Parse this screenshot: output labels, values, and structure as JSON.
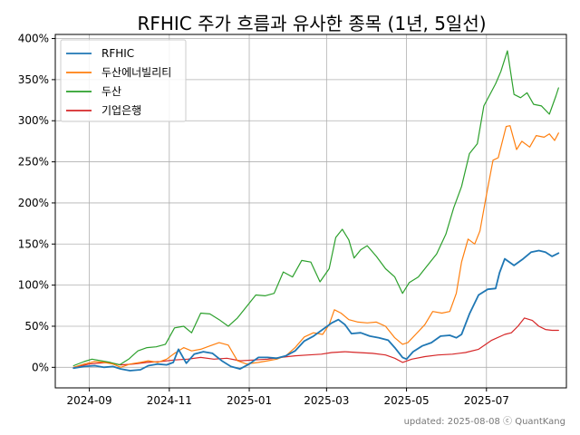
{
  "chart_data": {
    "type": "line",
    "title": "RFHIC 주가 흐름과 유사한 종목 (1년, 5일선)",
    "xlabel": "",
    "ylabel": "",
    "ylim": [
      -25,
      405
    ],
    "y_ticks": [
      "0%",
      "50%",
      "100%",
      "150%",
      "200%",
      "250%",
      "300%",
      "350%",
      "400%"
    ],
    "y_tick_values": [
      0,
      50,
      100,
      150,
      200,
      250,
      300,
      350,
      400
    ],
    "x_ticks": [
      "2024-09",
      "2024-11",
      "2025-01",
      "2025-03",
      "2025-05",
      "2025-07"
    ],
    "x_tick_values": [
      "2024-09-01",
      "2024-11-01",
      "2025-01-01",
      "2025-03-01",
      "2025-05-01",
      "2025-07-01"
    ],
    "xlim": [
      "2024-08-06",
      "2025-08-31"
    ],
    "grid": true,
    "legend_position": "top-left",
    "series": [
      {
        "name": "RFHIC",
        "color": "#1f77b4",
        "points": [
          [
            "2024-08-20",
            -1
          ],
          [
            "2024-08-28",
            1
          ],
          [
            "2024-09-05",
            2
          ],
          [
            "2024-09-12",
            0
          ],
          [
            "2024-09-19",
            1
          ],
          [
            "2024-09-25",
            -2
          ],
          [
            "2024-10-02",
            -4
          ],
          [
            "2024-10-10",
            -3
          ],
          [
            "2024-10-16",
            2
          ],
          [
            "2024-10-23",
            4
          ],
          [
            "2024-10-30",
            3
          ],
          [
            "2024-11-04",
            6
          ],
          [
            "2024-11-08",
            22
          ],
          [
            "2024-11-14",
            5
          ],
          [
            "2024-11-20",
            16
          ],
          [
            "2024-11-27",
            19
          ],
          [
            "2024-12-04",
            17
          ],
          [
            "2024-12-11",
            8
          ],
          [
            "2024-12-18",
            1
          ],
          [
            "2024-12-25",
            -2
          ],
          [
            "2025-01-01",
            4
          ],
          [
            "2025-01-08",
            12
          ],
          [
            "2025-01-15",
            12
          ],
          [
            "2025-01-22",
            11
          ],
          [
            "2025-01-29",
            14
          ],
          [
            "2025-02-05",
            20
          ],
          [
            "2025-02-12",
            32
          ],
          [
            "2025-02-19",
            38
          ],
          [
            "2025-02-26",
            46
          ],
          [
            "2025-03-05",
            54
          ],
          [
            "2025-03-10",
            58
          ],
          [
            "2025-03-15",
            52
          ],
          [
            "2025-03-20",
            41
          ],
          [
            "2025-03-27",
            42
          ],
          [
            "2025-04-03",
            38
          ],
          [
            "2025-04-10",
            36
          ],
          [
            "2025-04-17",
            33
          ],
          [
            "2025-04-22",
            24
          ],
          [
            "2025-04-28",
            12
          ],
          [
            "2025-05-01",
            10
          ],
          [
            "2025-05-06",
            19
          ],
          [
            "2025-05-13",
            26
          ],
          [
            "2025-05-20",
            30
          ],
          [
            "2025-05-27",
            38
          ],
          [
            "2025-06-03",
            39
          ],
          [
            "2025-06-08",
            36
          ],
          [
            "2025-06-12",
            40
          ],
          [
            "2025-06-18",
            65
          ],
          [
            "2025-06-25",
            88
          ],
          [
            "2025-07-02",
            95
          ],
          [
            "2025-07-08",
            96
          ],
          [
            "2025-07-11",
            115
          ],
          [
            "2025-07-15",
            132
          ],
          [
            "2025-07-22",
            124
          ],
          [
            "2025-07-29",
            132
          ],
          [
            "2025-08-04",
            140
          ],
          [
            "2025-08-10",
            142
          ],
          [
            "2025-08-15",
            140
          ],
          [
            "2025-08-20",
            135
          ],
          [
            "2025-08-25",
            139
          ]
        ]
      },
      {
        "name": "두산에너빌리티",
        "color": "#ff7f0e",
        "points": [
          [
            "2024-08-20",
            0
          ],
          [
            "2024-08-28",
            4
          ],
          [
            "2024-09-05",
            7
          ],
          [
            "2024-09-12",
            6
          ],
          [
            "2024-09-19",
            4
          ],
          [
            "2024-09-25",
            0
          ],
          [
            "2024-10-02",
            4
          ],
          [
            "2024-10-10",
            6
          ],
          [
            "2024-10-16",
            8
          ],
          [
            "2024-10-23",
            6
          ],
          [
            "2024-10-30",
            10
          ],
          [
            "2024-11-05",
            17
          ],
          [
            "2024-11-12",
            24
          ],
          [
            "2024-11-18",
            20
          ],
          [
            "2024-11-25",
            22
          ],
          [
            "2024-12-02",
            26
          ],
          [
            "2024-12-09",
            30
          ],
          [
            "2024-12-16",
            27
          ],
          [
            "2024-12-23",
            8
          ],
          [
            "2024-12-30",
            4
          ],
          [
            "2025-01-08",
            6
          ],
          [
            "2025-01-15",
            8
          ],
          [
            "2025-01-22",
            10
          ],
          [
            "2025-01-29",
            14
          ],
          [
            "2025-02-05",
            24
          ],
          [
            "2025-02-12",
            37
          ],
          [
            "2025-02-19",
            42
          ],
          [
            "2025-02-26",
            40
          ],
          [
            "2025-03-03",
            52
          ],
          [
            "2025-03-07",
            70
          ],
          [
            "2025-03-12",
            66
          ],
          [
            "2025-03-18",
            58
          ],
          [
            "2025-03-25",
            55
          ],
          [
            "2025-04-01",
            54
          ],
          [
            "2025-04-08",
            55
          ],
          [
            "2025-04-15",
            50
          ],
          [
            "2025-04-22",
            36
          ],
          [
            "2025-04-28",
            28
          ],
          [
            "2025-05-02",
            30
          ],
          [
            "2025-05-08",
            40
          ],
          [
            "2025-05-15",
            52
          ],
          [
            "2025-05-21",
            68
          ],
          [
            "2025-05-28",
            66
          ],
          [
            "2025-06-03",
            68
          ],
          [
            "2025-06-08",
            90
          ],
          [
            "2025-06-12",
            128
          ],
          [
            "2025-06-17",
            156
          ],
          [
            "2025-06-22",
            150
          ],
          [
            "2025-06-26",
            166
          ],
          [
            "2025-07-01",
            210
          ],
          [
            "2025-07-06",
            252
          ],
          [
            "2025-07-10",
            255
          ],
          [
            "2025-07-16",
            293
          ],
          [
            "2025-07-19",
            294
          ],
          [
            "2025-07-24",
            265
          ],
          [
            "2025-07-28",
            275
          ],
          [
            "2025-08-03",
            268
          ],
          [
            "2025-08-08",
            282
          ],
          [
            "2025-08-14",
            280
          ],
          [
            "2025-08-18",
            284
          ],
          [
            "2025-08-22",
            276
          ],
          [
            "2025-08-25",
            285
          ]
        ]
      },
      {
        "name": "두산",
        "color": "#2ca02c",
        "points": [
          [
            "2024-08-20",
            2
          ],
          [
            "2024-08-28",
            7
          ],
          [
            "2024-09-03",
            10
          ],
          [
            "2024-09-10",
            8
          ],
          [
            "2024-09-17",
            6
          ],
          [
            "2024-09-24",
            3
          ],
          [
            "2024-10-01",
            10
          ],
          [
            "2024-10-08",
            20
          ],
          [
            "2024-10-15",
            24
          ],
          [
            "2024-10-22",
            25
          ],
          [
            "2024-10-29",
            28
          ],
          [
            "2024-11-05",
            48
          ],
          [
            "2024-11-12",
            50
          ],
          [
            "2024-11-18",
            42
          ],
          [
            "2024-11-25",
            66
          ],
          [
            "2024-12-02",
            65
          ],
          [
            "2024-12-09",
            58
          ],
          [
            "2024-12-16",
            50
          ],
          [
            "2024-12-23",
            60
          ],
          [
            "2025-01-01",
            78
          ],
          [
            "2025-01-06",
            88
          ],
          [
            "2025-01-13",
            87
          ],
          [
            "2025-01-20",
            90
          ],
          [
            "2025-01-27",
            116
          ],
          [
            "2025-02-03",
            110
          ],
          [
            "2025-02-10",
            130
          ],
          [
            "2025-02-17",
            128
          ],
          [
            "2025-02-24",
            104
          ],
          [
            "2025-03-03",
            120
          ],
          [
            "2025-03-08",
            158
          ],
          [
            "2025-03-13",
            168
          ],
          [
            "2025-03-18",
            155
          ],
          [
            "2025-03-22",
            133
          ],
          [
            "2025-03-27",
            143
          ],
          [
            "2025-04-01",
            148
          ],
          [
            "2025-04-08",
            135
          ],
          [
            "2025-04-15",
            120
          ],
          [
            "2025-04-22",
            110
          ],
          [
            "2025-04-28",
            90
          ],
          [
            "2025-05-03",
            103
          ],
          [
            "2025-05-10",
            110
          ],
          [
            "2025-05-17",
            124
          ],
          [
            "2025-05-24",
            138
          ],
          [
            "2025-05-31",
            162
          ],
          [
            "2025-06-06",
            194
          ],
          [
            "2025-06-12",
            220
          ],
          [
            "2025-06-18",
            260
          ],
          [
            "2025-06-24",
            272
          ],
          [
            "2025-06-29",
            318
          ],
          [
            "2025-07-03",
            330
          ],
          [
            "2025-07-08",
            345
          ],
          [
            "2025-07-12",
            360
          ],
          [
            "2025-07-17",
            385
          ],
          [
            "2025-07-22",
            332
          ],
          [
            "2025-07-27",
            328
          ],
          [
            "2025-08-01",
            334
          ],
          [
            "2025-08-06",
            320
          ],
          [
            "2025-08-12",
            318
          ],
          [
            "2025-08-18",
            308
          ],
          [
            "2025-08-23",
            330
          ],
          [
            "2025-08-25",
            340
          ]
        ]
      },
      {
        "name": "기업은행",
        "color": "#d62728",
        "points": [
          [
            "2024-08-20",
            0
          ],
          [
            "2024-09-01",
            4
          ],
          [
            "2024-09-15",
            6
          ],
          [
            "2024-09-25",
            3
          ],
          [
            "2024-10-05",
            4
          ],
          [
            "2024-10-15",
            6
          ],
          [
            "2024-10-25",
            7
          ],
          [
            "2024-11-05",
            9
          ],
          [
            "2024-11-15",
            10
          ],
          [
            "2024-11-25",
            12
          ],
          [
            "2024-12-05",
            10
          ],
          [
            "2024-12-15",
            11
          ],
          [
            "2024-12-25",
            8
          ],
          [
            "2025-01-05",
            9
          ],
          [
            "2025-01-15",
            10
          ],
          [
            "2025-01-25",
            12
          ],
          [
            "2025-02-05",
            14
          ],
          [
            "2025-02-15",
            15
          ],
          [
            "2025-02-25",
            16
          ],
          [
            "2025-03-05",
            18
          ],
          [
            "2025-03-15",
            19
          ],
          [
            "2025-03-25",
            18
          ],
          [
            "2025-04-05",
            17
          ],
          [
            "2025-04-15",
            15
          ],
          [
            "2025-04-22",
            11
          ],
          [
            "2025-04-28",
            6
          ],
          [
            "2025-05-05",
            10
          ],
          [
            "2025-05-15",
            13
          ],
          [
            "2025-05-25",
            15
          ],
          [
            "2025-06-05",
            16
          ],
          [
            "2025-06-15",
            18
          ],
          [
            "2025-06-25",
            22
          ],
          [
            "2025-07-05",
            33
          ],
          [
            "2025-07-15",
            40
          ],
          [
            "2025-07-20",
            42
          ],
          [
            "2025-07-25",
            50
          ],
          [
            "2025-07-30",
            60
          ],
          [
            "2025-08-05",
            57
          ],
          [
            "2025-08-10",
            50
          ],
          [
            "2025-08-15",
            46
          ],
          [
            "2025-08-20",
            45
          ],
          [
            "2025-08-25",
            45
          ]
        ]
      }
    ]
  },
  "footer": {
    "text": "updated: 2025-08-08 ⓒ QuantKang"
  }
}
